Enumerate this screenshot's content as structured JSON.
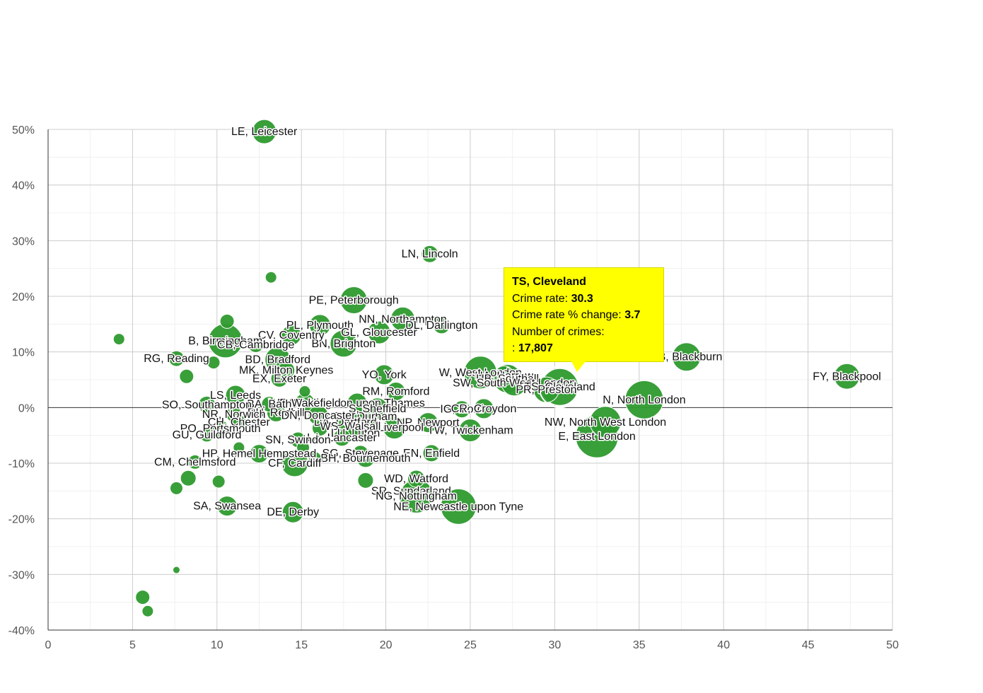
{
  "chart_data": {
    "type": "scatter",
    "subtype": "bubble",
    "title": "",
    "xlabel": "",
    "ylabel": "",
    "xlim": [
      0,
      50
    ],
    "ylim": [
      -40,
      50
    ],
    "x_ticks": [
      "0",
      "5",
      "10",
      "15",
      "20",
      "25",
      "30",
      "35",
      "40",
      "45",
      "50"
    ],
    "y_ticks": [
      "50%",
      "40%",
      "30%",
      "20%",
      "10%",
      "0%",
      "-10%",
      "-20%",
      "-30%",
      "-40%"
    ],
    "bubble_color": "#2e9a2e",
    "points": [
      {
        "label": "LE, Leicester",
        "x": 12.8,
        "y": 49.6,
        "r": 17
      },
      {
        "label": "LN, Lincoln",
        "x": 22.6,
        "y": 27.6,
        "r": 12
      },
      {
        "label": "",
        "x": 13.2,
        "y": 23.4,
        "r": 8
      },
      {
        "label": "PE, Peterborough",
        "x": 18.1,
        "y": 19.3,
        "r": 19
      },
      {
        "label": "NN, Northampton",
        "x": 21.0,
        "y": 15.9,
        "r": 17
      },
      {
        "label": "DL, Darlington",
        "x": 23.3,
        "y": 14.8,
        "r": 12
      },
      {
        "label": "PL, Plymouth",
        "x": 16.1,
        "y": 14.8,
        "r": 15
      },
      {
        "label": "GL, Gloucester",
        "x": 19.6,
        "y": 13.5,
        "r": 16
      },
      {
        "label": "BN, Brighton",
        "x": 17.5,
        "y": 11.5,
        "r": 19
      },
      {
        "label": "CV, Coventry",
        "x": 14.4,
        "y": 13.0,
        "r": 14
      },
      {
        "label": "B, Birmingham",
        "x": 10.5,
        "y": 12.0,
        "r": 24
      },
      {
        "label": "",
        "x": 10.6,
        "y": 15.5,
        "r": 10
      },
      {
        "label": "",
        "x": 4.2,
        "y": 12.3,
        "r": 8
      },
      {
        "label": "CB, Cambridge",
        "x": 12.3,
        "y": 11.3,
        "r": 11
      },
      {
        "label": "RG, Reading",
        "x": 7.6,
        "y": 8.8,
        "r": 11
      },
      {
        "label": "BD, Bradford",
        "x": 13.6,
        "y": 8.6,
        "r": 18
      },
      {
        "label": "",
        "x": 9.8,
        "y": 8.1,
        "r": 9
      },
      {
        "label": "MK, Milton Keynes",
        "x": 14.1,
        "y": 6.7,
        "r": 12
      },
      {
        "label": "",
        "x": 8.2,
        "y": 5.6,
        "r": 10
      },
      {
        "label": "EX, Exeter",
        "x": 13.7,
        "y": 5.2,
        "r": 12
      },
      {
        "label": "YO, York",
        "x": 19.9,
        "y": 5.9,
        "r": 14
      },
      {
        "label": "RM, Romford",
        "x": 20.6,
        "y": 2.9,
        "r": 13
      },
      {
        "label": "W, West London",
        "x": 25.6,
        "y": 6.3,
        "r": 23
      },
      {
        "label": "HA, Harrow",
        "x": 27.0,
        "y": 5.7,
        "r": 14
      },
      {
        "label": "UB, Southall",
        "x": 27.2,
        "y": 5.2,
        "r": 20
      },
      {
        "label": "SW, South West London",
        "x": 27.6,
        "y": 4.4,
        "r": 18
      },
      {
        "label": "TS, Cleveland",
        "x": 30.3,
        "y": 3.7,
        "r": 26
      },
      {
        "label": "PR, Preston",
        "x": 29.5,
        "y": 3.2,
        "r": 18
      },
      {
        "label": "BB, Blackburn",
        "x": 37.8,
        "y": 9.1,
        "r": 20
      },
      {
        "label": "FY, Blackpool",
        "x": 47.3,
        "y": 5.6,
        "r": 18
      },
      {
        "label": "N, North London",
        "x": 35.3,
        "y": 1.4,
        "r": 27
      },
      {
        "label": "NW, North West London",
        "x": 33.0,
        "y": -2.6,
        "r": 22
      },
      {
        "label": "E, East London",
        "x": 32.5,
        "y": -5.2,
        "r": 30
      },
      {
        "label": "IG, Ilford",
        "x": 24.5,
        "y": -0.3,
        "r": 12
      },
      {
        "label": "CR, Croydon",
        "x": 25.8,
        "y": -0.2,
        "r": 14
      },
      {
        "label": "TW, Twickenham",
        "x": 25.0,
        "y": -4.1,
        "r": 16
      },
      {
        "label": "NP, Newport",
        "x": 22.5,
        "y": -2.7,
        "r": 14
      },
      {
        "label": "L, Liverpool",
        "x": 20.5,
        "y": -3.6,
        "r": 16
      },
      {
        "label": "EN, Enfield",
        "x": 22.7,
        "y": -8.2,
        "r": 12
      },
      {
        "label": "KT, Kingston upon Thames",
        "x": 18.3,
        "y": 0.8,
        "r": 14
      },
      {
        "label": "DH, Durham",
        "x": 18.8,
        "y": -1.6,
        "r": 16
      },
      {
        "label": "S, Sheffield",
        "x": 19.5,
        "y": -0.2,
        "r": 15
      },
      {
        "label": "DA, Dartford",
        "x": 17.6,
        "y": -2.6,
        "r": 13
      },
      {
        "label": "WS, Walsall",
        "x": 17.9,
        "y": -3.4,
        "r": 14
      },
      {
        "label": "LU, Luton",
        "x": 18.2,
        "y": -4.6,
        "r": 13
      },
      {
        "label": "LA, Lancaster",
        "x": 17.4,
        "y": -5.4,
        "r": 12
      },
      {
        "label": "SG, Stevenage",
        "x": 18.5,
        "y": -8.2,
        "r": 11
      },
      {
        "label": "BH, Bournemouth",
        "x": 18.8,
        "y": -9.1,
        "r": 13
      },
      {
        "label": "WD, Watford",
        "x": 21.8,
        "y": -12.8,
        "r": 12
      },
      {
        "label": "",
        "x": 18.8,
        "y": -13.1,
        "r": 11
      },
      {
        "label": "SR, Sunderland",
        "x": 21.5,
        "y": -15.0,
        "r": 13
      },
      {
        "label": "NG, Nottingham",
        "x": 21.8,
        "y": -15.9,
        "r": 24
      },
      {
        "label": "NE, Newcastle upon Tyne",
        "x": 24.3,
        "y": -17.8,
        "r": 25
      },
      {
        "label": "WF, Wakefield",
        "x": 15.2,
        "y": 0.8,
        "r": 14
      },
      {
        "label": "BA, Bath",
        "x": 13.1,
        "y": 0.6,
        "r": 11
      },
      {
        "label": "LS, Leeds",
        "x": 11.1,
        "y": 2.2,
        "r": 14
      },
      {
        "label": "",
        "x": 15.2,
        "y": 2.9,
        "r": 8
      },
      {
        "label": "SO, Southampton",
        "x": 9.4,
        "y": 0.5,
        "r": 12
      },
      {
        "label": "RH, Redhill",
        "x": 13.5,
        "y": -0.9,
        "r": 13
      },
      {
        "label": "NR, Norwich",
        "x": 11.0,
        "y": -1.2,
        "r": 11
      },
      {
        "label": "DN, Doncaster",
        "x": 16.0,
        "y": -1.4,
        "r": 14
      },
      {
        "label": "CH, Chester",
        "x": 11.3,
        "y": -2.6,
        "r": 10
      },
      {
        "label": "PO, Portsmouth",
        "x": 10.2,
        "y": -3.8,
        "r": 12
      },
      {
        "label": "GU, Guildford",
        "x": 9.4,
        "y": -4.9,
        "r": 10
      },
      {
        "label": "",
        "x": 16.1,
        "y": -3.7,
        "r": 11
      },
      {
        "label": "SN, Swindon",
        "x": 14.8,
        "y": -5.8,
        "r": 11
      },
      {
        "label": "",
        "x": 15.1,
        "y": -7.2,
        "r": 9
      },
      {
        "label": "HP, Hemel Hempstead",
        "x": 12.5,
        "y": -8.3,
        "r": 13
      },
      {
        "label": "",
        "x": 11.3,
        "y": -7.2,
        "r": 8
      },
      {
        "label": "CF, Cardiff",
        "x": 14.6,
        "y": -10.0,
        "r": 19
      },
      {
        "label": "",
        "x": 15.8,
        "y": -9.1,
        "r": 9
      },
      {
        "label": "CM, Chelmsford",
        "x": 8.7,
        "y": -9.8,
        "r": 10
      },
      {
        "label": "",
        "x": 8.3,
        "y": -12.7,
        "r": 11
      },
      {
        "label": "",
        "x": 10.1,
        "y": -13.3,
        "r": 9
      },
      {
        "label": "",
        "x": 7.6,
        "y": -14.5,
        "r": 9
      },
      {
        "label": "SA, Swansea",
        "x": 10.6,
        "y": -17.7,
        "r": 14
      },
      {
        "label": "DE, Derby",
        "x": 14.5,
        "y": -18.8,
        "r": 15
      },
      {
        "label": "",
        "x": 7.6,
        "y": -29.2,
        "r": 5
      },
      {
        "label": "",
        "x": 5.6,
        "y": -34.1,
        "r": 10
      },
      {
        "label": "",
        "x": 5.9,
        "y": -36.6,
        "r": 8
      }
    ],
    "tooltip": {
      "title": "TS, Cleveland",
      "rate_label": "Crime rate:",
      "rate_value": "30.3",
      "change_label": "Crime rate % change:",
      "change_value": "3.7",
      "count_label": "Number of crimes:",
      "count_prefix": ":",
      "count_value": "17,807"
    }
  }
}
